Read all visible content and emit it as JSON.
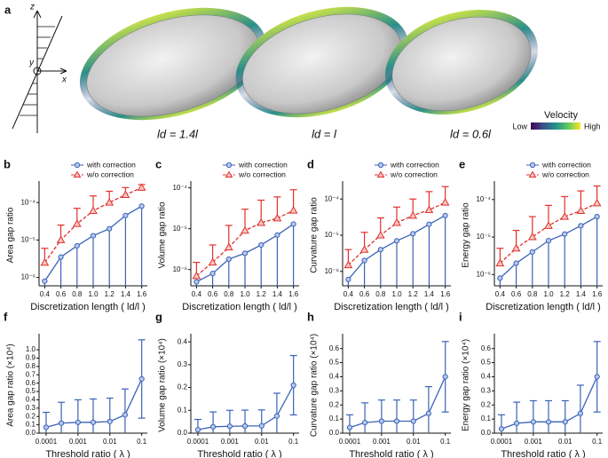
{
  "panel_a": {
    "label": "a",
    "axes": {
      "z": "z",
      "y": "y",
      "x": "x"
    },
    "captions": [
      "ld = 1.4l",
      "ld = l",
      "ld = 0.6l"
    ],
    "colorbar": {
      "title": "Velocity",
      "low": "Low",
      "high": "High"
    }
  },
  "chart_data": [
    {
      "type": "line",
      "panel": "b",
      "ylabel": "Area gap ratio",
      "xlabel": "Discretization length ( ld/l )",
      "ylog": true,
      "legend": "top",
      "x": [
        0.4,
        0.6,
        0.8,
        1,
        1.2,
        1.4,
        1.6
      ],
      "xlim": [
        0.33,
        1.67
      ],
      "xticks": [
        0.4,
        0.6,
        0.8,
        {
          "value": 1,
          "label": "1.0"
        },
        1.2,
        1.4,
        1.6
      ],
      "ylim": [
        6e-07,
        0.0003
      ],
      "yticks": [
        {
          "value": 1e-06,
          "label": "10⁻⁶"
        },
        {
          "value": 1e-05,
          "label": "10⁻⁵"
        },
        {
          "value": 0.0001,
          "label": "10⁻⁴"
        }
      ],
      "series": [
        {
          "name": "with correction",
          "color": "#3a62b8",
          "values": [
            8e-07,
            3.5e-06,
            7e-06,
            1.3e-05,
            2e-05,
            4.5e-05,
            8e-05
          ],
          "lower": [
            6e-07,
            6e-07,
            6e-07,
            6e-07,
            6e-07,
            6e-07,
            6e-07
          ]
        },
        {
          "name": "w/o correction",
          "color": "#e0312b",
          "values": [
            2.5e-06,
            1e-05,
            2.7e-05,
            6e-05,
            0.0001,
            0.00016,
            0.00025
          ],
          "upper": [
            6e-06,
            2.5e-05,
            7e-05,
            0.00015,
            0.0002,
            0.00025,
            0.0003
          ]
        }
      ]
    },
    {
      "type": "line",
      "panel": "c",
      "ylabel": "Volume gap ratio",
      "xlabel": "Discretization length ( ld/l )",
      "ylog": true,
      "legend": "top",
      "x": [
        0.4,
        0.6,
        0.8,
        1,
        1.2,
        1.4,
        1.6
      ],
      "xlim": [
        0.33,
        1.67
      ],
      "xticks": [
        0.4,
        0.6,
        0.8,
        {
          "value": 1,
          "label": "1.0"
        },
        1.2,
        1.4,
        1.6
      ],
      "ylim": [
        4e-07,
        0.00012
      ],
      "yticks": [
        {
          "value": 1e-06,
          "label": "10⁻⁶"
        },
        {
          "value": 1e-05,
          "label": "10⁻⁵"
        },
        {
          "value": 0.0001,
          "label": "10⁻⁴"
        }
      ],
      "series": [
        {
          "name": "with correction",
          "color": "#3a62b8",
          "values": [
            5e-07,
            8e-07,
            1.8e-06,
            2.5e-06,
            4e-06,
            7e-06,
            1.3e-05
          ],
          "lower": [
            4e-07,
            4e-07,
            4e-07,
            4e-07,
            4e-07,
            4e-07,
            4e-07
          ]
        },
        {
          "name": "w/o correction",
          "color": "#e0312b",
          "values": [
            7e-07,
            1.5e-06,
            3.5e-06,
            9e-06,
            1.4e-05,
            1.8e-05,
            2.8e-05
          ],
          "upper": [
            1.5e-06,
            4e-06,
            1.2e-05,
            3e-05,
            5e-05,
            6e-05,
            9e-05
          ]
        }
      ]
    },
    {
      "type": "line",
      "panel": "d",
      "ylabel": "Curvature gap ratio",
      "xlabel": "Discretization length ( ld/l )",
      "ylog": true,
      "legend": "top",
      "x": [
        0.4,
        0.6,
        0.8,
        1,
        1.2,
        1.4,
        1.6
      ],
      "xlim": [
        0.33,
        1.67
      ],
      "xticks": [
        0.4,
        0.6,
        0.8,
        {
          "value": 1,
          "label": "1.0"
        },
        1.2,
        1.4,
        1.6
      ],
      "ylim": [
        4e-07,
        0.00025
      ],
      "yticks": [
        {
          "value": 1e-06,
          "label": "10⁻⁶"
        },
        {
          "value": 1e-05,
          "label": "10⁻⁵"
        },
        {
          "value": 0.0001,
          "label": "10⁻⁴"
        }
      ],
      "series": [
        {
          "name": "with correction",
          "color": "#3a62b8",
          "values": [
            6e-07,
            2e-06,
            4e-06,
            7e-06,
            1.1e-05,
            2e-05,
            3.5e-05
          ],
          "lower": [
            4e-07,
            4e-07,
            4e-07,
            4e-07,
            4e-07,
            4e-07,
            4e-07
          ]
        },
        {
          "name": "w/o correction",
          "color": "#e0312b",
          "values": [
            1.5e-06,
            4e-06,
            1e-05,
            2.2e-05,
            3.5e-05,
            5e-05,
            8e-05
          ],
          "upper": [
            4e-06,
            1.2e-05,
            3e-05,
            6e-05,
            0.0001,
            0.00016,
            0.00022
          ]
        }
      ]
    },
    {
      "type": "line",
      "panel": "e",
      "ylabel": "Energy gap ratio",
      "xlabel": "Discretization length ( ld/l )",
      "ylog": true,
      "legend": "top",
      "x": [
        0.4,
        0.6,
        0.8,
        1,
        1.2,
        1.4,
        1.6
      ],
      "xlim": [
        0.33,
        1.67
      ],
      "xticks": [
        0.4,
        0.6,
        0.8,
        {
          "value": 1,
          "label": "1.0"
        },
        1.2,
        1.4,
        1.6
      ],
      "ylim": [
        5e-07,
        0.00025
      ],
      "yticks": [
        {
          "value": 1e-06,
          "label": "10⁻⁶"
        },
        {
          "value": 1e-05,
          "label": "10⁻⁵"
        },
        {
          "value": 0.0001,
          "label": "10⁻⁴"
        }
      ],
      "series": [
        {
          "name": "with correction",
          "color": "#3a62b8",
          "values": [
            8e-07,
            2e-06,
            4e-06,
            8e-06,
            1.2e-05,
            2e-05,
            3.5e-05
          ],
          "lower": [
            5e-07,
            5e-07,
            5e-07,
            5e-07,
            5e-07,
            5e-07,
            5e-07
          ]
        },
        {
          "name": "w/o correction",
          "color": "#e0312b",
          "values": [
            2e-06,
            5e-06,
            1e-05,
            2e-05,
            3.5e-05,
            5e-05,
            8e-05
          ],
          "upper": [
            5e-06,
            1.5e-05,
            3.5e-05,
            7e-05,
            0.00012,
            0.00017,
            0.00023
          ]
        }
      ]
    },
    {
      "type": "line",
      "panel": "f",
      "ylabel": "Area gap ratio (×10⁴)",
      "xlabel": "Threshold ratio ( λ )",
      "xlog": true,
      "x": [
        0.0001,
        0.0003,
        0.001,
        0.003,
        0.01,
        0.03,
        0.1
      ],
      "xlim": [
        6e-05,
        0.15
      ],
      "xticks": [
        0.0001,
        0.001,
        0.01,
        0.1
      ],
      "ylim": [
        0,
        1.15
      ],
      "yticks": [
        {
          "value": 0,
          "label": "0.0"
        },
        0.1,
        0.2,
        0.3,
        0.4,
        0.5,
        0.6,
        0.7,
        0.8,
        0.9,
        {
          "value": 1,
          "label": "1.0"
        }
      ],
      "color": "#3a62b8",
      "values": [
        0.07,
        0.12,
        0.13,
        0.13,
        0.14,
        0.22,
        0.65
      ],
      "error": [
        0.18,
        0.25,
        0.27,
        0.28,
        0.28,
        0.31,
        0.47
      ]
    },
    {
      "type": "line",
      "panel": "g",
      "ylabel": "Volume gap ratio (×10⁴)",
      "xlabel": "Threshold ratio ( λ )",
      "xlog": true,
      "x": [
        0.0001,
        0.0003,
        0.001,
        0.003,
        0.01,
        0.03,
        0.1
      ],
      "xlim": [
        6e-05,
        0.15
      ],
      "xticks": [
        0.0001,
        0.001,
        0.01,
        0.1
      ],
      "ylim": [
        0,
        0.42
      ],
      "yticks": [
        {
          "value": 0,
          "label": "0.0"
        },
        0.1,
        0.2,
        0.3,
        0.4
      ],
      "color": "#3a62b8",
      "values": [
        0.015,
        0.028,
        0.03,
        0.031,
        0.032,
        0.075,
        0.21
      ],
      "error": [
        0.045,
        0.065,
        0.07,
        0.07,
        0.07,
        0.1,
        0.13
      ]
    },
    {
      "type": "line",
      "panel": "h",
      "ylabel": "Curvature gap ratio (×10⁴)",
      "xlabel": "Threshold ratio ( λ )",
      "xlog": true,
      "x": [
        0.0001,
        0.0003,
        0.001,
        0.003,
        0.01,
        0.03,
        0.1
      ],
      "xlim": [
        6e-05,
        0.15
      ],
      "xticks": [
        0.0001,
        0.001,
        0.01,
        0.1
      ],
      "ylim": [
        0,
        0.68
      ],
      "yticks": [
        {
          "value": 0,
          "label": "0.0"
        },
        0.1,
        0.2,
        0.3,
        0.4,
        0.5,
        0.6
      ],
      "color": "#3a62b8",
      "values": [
        0.04,
        0.075,
        0.085,
        0.085,
        0.085,
        0.14,
        0.4
      ],
      "error": [
        0.09,
        0.14,
        0.15,
        0.15,
        0.15,
        0.19,
        0.25
      ]
    },
    {
      "type": "line",
      "panel": "i",
      "ylabel": "Energy gap ratio (×10⁴)",
      "xlabel": "Threshold ratio ( λ )",
      "xlog": true,
      "x": [
        0.0001,
        0.0003,
        0.001,
        0.003,
        0.01,
        0.03,
        0.1
      ],
      "xlim": [
        6e-05,
        0.15
      ],
      "xticks": [
        0.0001,
        0.001,
        0.01,
        0.1
      ],
      "ylim": [
        0,
        0.68
      ],
      "yticks": [
        {
          "value": 0,
          "label": "0.0"
        },
        0.1,
        0.2,
        0.3,
        0.4,
        0.5,
        0.6
      ],
      "color": "#3a62b8",
      "values": [
        0.03,
        0.07,
        0.08,
        0.08,
        0.08,
        0.14,
        0.4
      ],
      "error": [
        0.1,
        0.15,
        0.15,
        0.15,
        0.15,
        0.2,
        0.25
      ]
    }
  ]
}
